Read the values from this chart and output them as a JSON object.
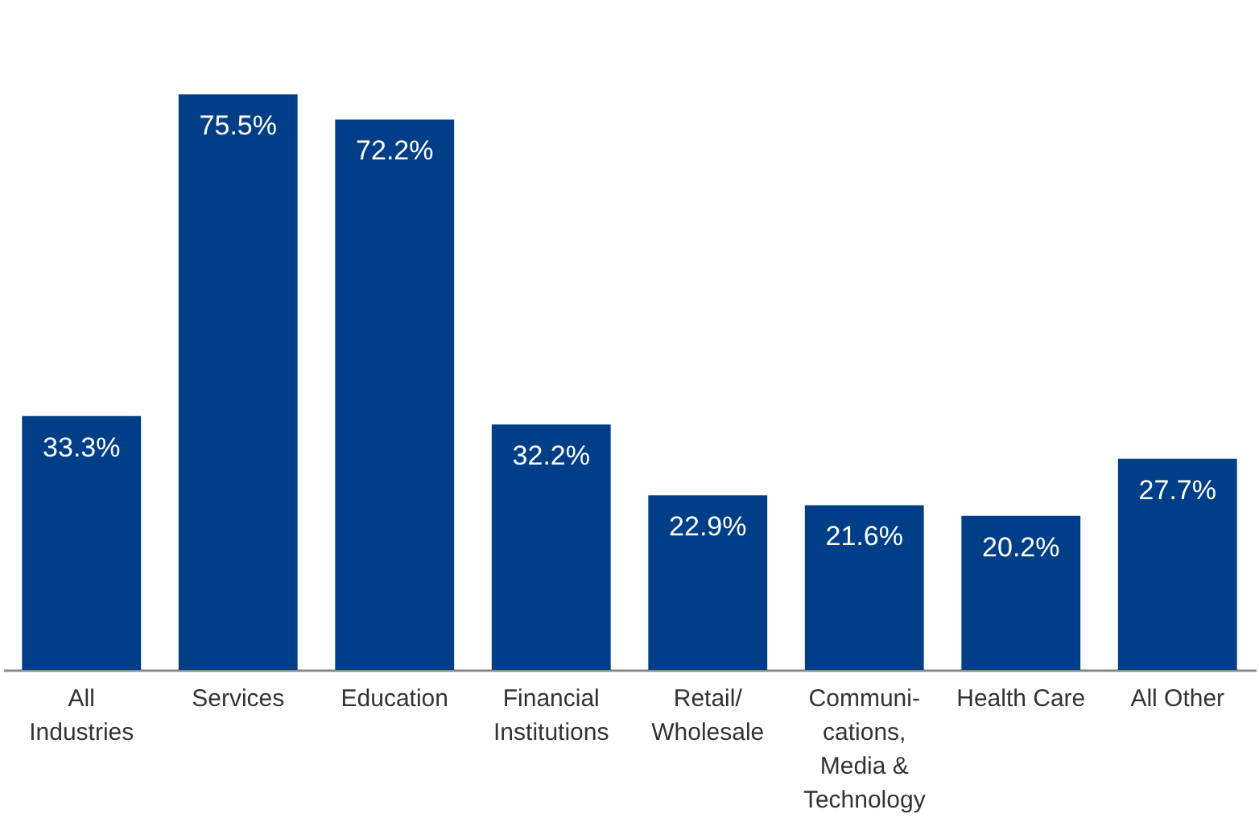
{
  "chart_data": {
    "type": "bar",
    "categories": [
      "All\nIndustries",
      "Services",
      "Education",
      "Financial\nInstitutions",
      "Retail/\nWholesale",
      "Communi-\ncations,\nMedia &\nTechnology",
      "Health Care",
      "All Other"
    ],
    "values": [
      33.3,
      75.5,
      72.2,
      32.2,
      22.9,
      21.6,
      20.2,
      27.7
    ],
    "value_labels": [
      "33.3%",
      "75.5%",
      "72.2%",
      "32.2%",
      "22.9%",
      "21.6%",
      "20.2%",
      "27.7%"
    ],
    "color": "#003f87",
    "grid": false
  }
}
